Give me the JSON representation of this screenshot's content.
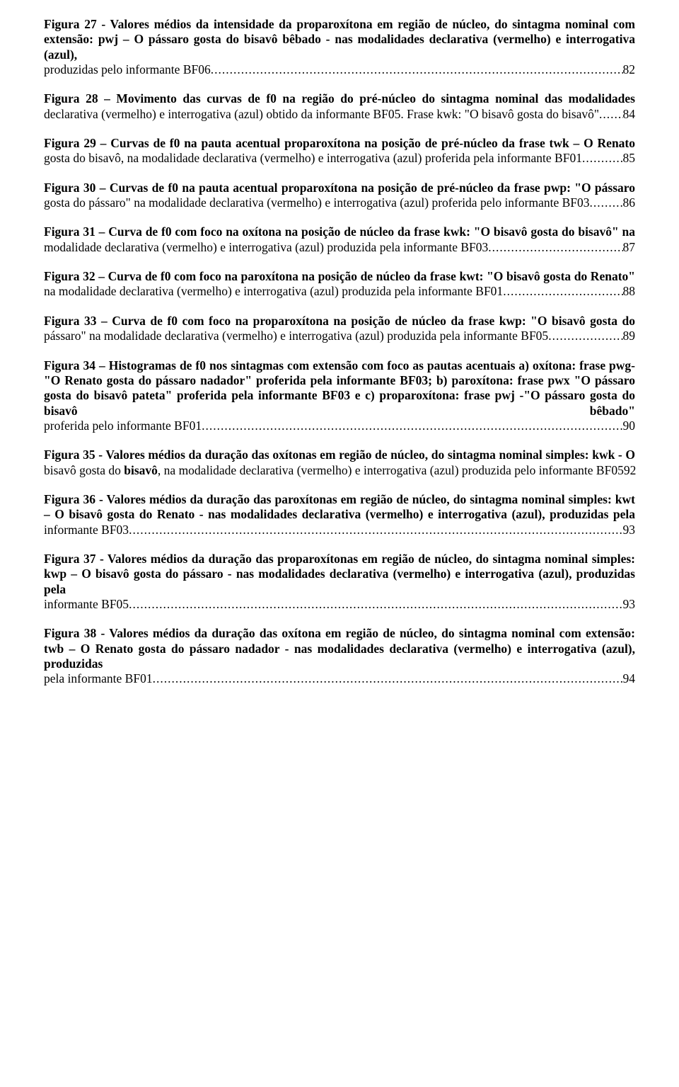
{
  "entries": [
    {
      "body": "<b>Figura 27</b> - Valores médios da intensidade da proparoxítona em região de núcleo, do sintagma nominal com extensão: pwj – O pássaro gosta do bisavô bêbado - nas modalidades declarativa (vermelho) e interrogativa (azul), produzidas pelo informante BF06",
      "page": "82"
    },
    {
      "body": "<b>Figura 28</b> – Movimento das curvas de f0 na região do pré-núcleo do sintagma nominal das modalidades declarativa (vermelho) e interrogativa (azul) obtido da informante BF05. Frase kwk: \"O bisavô gosta do bisavô\"",
      "page": "84"
    },
    {
      "body": "<b>Figura 29</b> – Curvas de f0 na pauta acentual proparoxítona na posição de pré-núcleo da frase twk – O Renato gosta do bisavô, na modalidade declarativa (vermelho) e interrogativa (azul) proferida pela informante BF01",
      "page": "85"
    },
    {
      "body": "<b>Figura 30</b> – Curvas de f0 na pauta acentual proparoxítona na posição de pré-núcleo da frase pwp: \"O pássaro gosta do pássaro\" na modalidade declarativa (vermelho) e interrogativa (azul) proferida pelo informante BF03",
      "page": "86"
    },
    {
      "body": "<b>Figura 31</b> – Curva de f0 com foco na oxítona na posição de núcleo da frase kwk: \"O bisavô gosta do bisavô\" na modalidade declarativa (vermelho) e interrogativa (azul) produzida pela informante BF03",
      "page": "87"
    },
    {
      "body": "<b>Figura 32</b> – Curva de f0 com foco na paroxítona na posição de núcleo da frase kwt: \"O bisavô gosta do Renato\" na modalidade declarativa (vermelho) e interrogativa (azul) produzida pela informante BF01",
      "page": "88"
    },
    {
      "body": "<b>Figura 33</b> – Curva de f0 com foco na proparoxítona na posição de núcleo da frase kwp: \"O bisavô gosta do pássaro\" na modalidade declarativa (vermelho) e interrogativa (azul) produzida pela informante BF05",
      "page": "89"
    },
    {
      "body": "<b>Figura 34</b> – Histogramas de f0 nos sintagmas com extensão com foco as pautas acentuais a) oxítona: frase pwg- \"O Renato gosta do pássaro nadador\" proferida pela informante BF03; b) paroxítona: frase pwx \"O pássaro gosta do bisavô pateta\" proferida pela informante BF03 e c) proparoxítona: frase pwj -\"O pássaro gosta do bisavô bêbado\" proferida pelo informante BF01",
      "page": "90"
    },
    {
      "body": "<b>Figura 35</b> - Valores médios da duração das oxítonas em região de núcleo, do sintagma nominal simples: kwk - O bisavô gosta do <b>bisavô</b>, na modalidade declarativa (vermelho) e interrogativa (azul) produzida pelo informante BF05",
      "page": "92"
    },
    {
      "body": "<b>Figura 36</b> - Valores médios da duração das paroxítonas em região de núcleo, do sintagma nominal simples: kwt – O bisavô gosta do Renato - nas modalidades declarativa (vermelho) e interrogativa (azul), produzidas pela informante BF03",
      "page": "93"
    },
    {
      "body": "<b>Figura 37</b> - Valores médios da duração das proparoxítonas em região de núcleo, do sintagma nominal simples: kwp – O bisavô gosta do pássaro - nas modalidades declarativa (vermelho) e interrogativa (azul), produzidas pela informante BF05",
      "page": "93"
    },
    {
      "body": "<b>Figura 38</b> - Valores médios da duração das oxítona em região de núcleo, do sintagma nominal com extensão: twb – O Renato gosta do pássaro <b>nadador</b> - nas modalidades declarativa (vermelho) e interrogativa (azul), produzidas pela informante BF01",
      "page": "94"
    }
  ]
}
